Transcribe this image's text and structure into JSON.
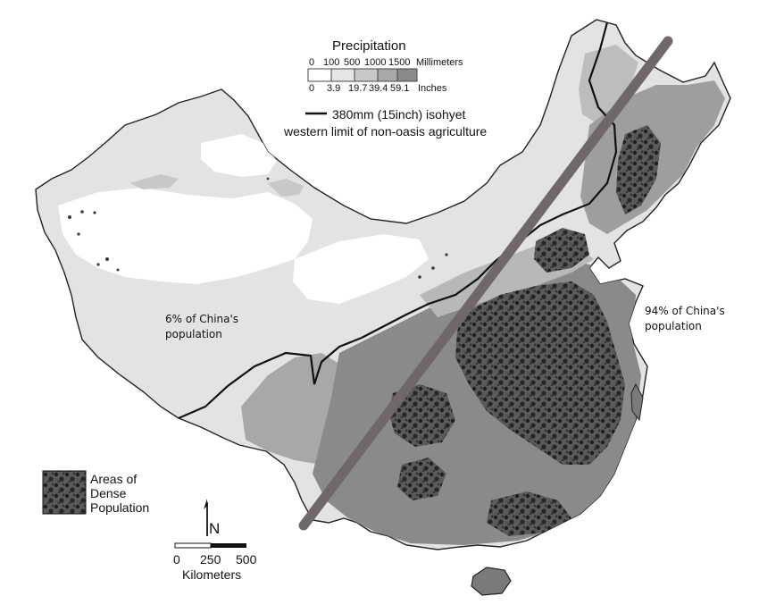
{
  "legend": {
    "precip_title": "Precipitation",
    "mm_ticks": [
      "0",
      "100",
      "500",
      "1000",
      "1500"
    ],
    "mm_unit": "Millimeters",
    "inch_ticks": [
      "0",
      "3.9",
      "19.7",
      "39.4",
      "59.1"
    ],
    "inch_unit": "Inches",
    "swatch_colors": [
      "#ffffff",
      "#e6e6e6",
      "#c8c8c8",
      "#a8a8a8",
      "#8a8a8a"
    ],
    "isohyet_label": "380mm (15inch) isohyet",
    "isohyet_sub": "western limit of non-oasis agriculture",
    "dense_label": "Areas of Dense Population"
  },
  "annotations": {
    "west_pop": "6% of China's population",
    "east_pop": "94% of China's population"
  },
  "north_arrow": {
    "label": "N"
  },
  "scale_bar": {
    "ticks": [
      "0",
      "250",
      "500"
    ],
    "unit": "Kilometers"
  },
  "colors": {
    "divide_line": "#6f6868",
    "dense": "#2a2a2a",
    "outline": "#222222"
  },
  "icons": [
    "north-arrow-icon"
  ]
}
